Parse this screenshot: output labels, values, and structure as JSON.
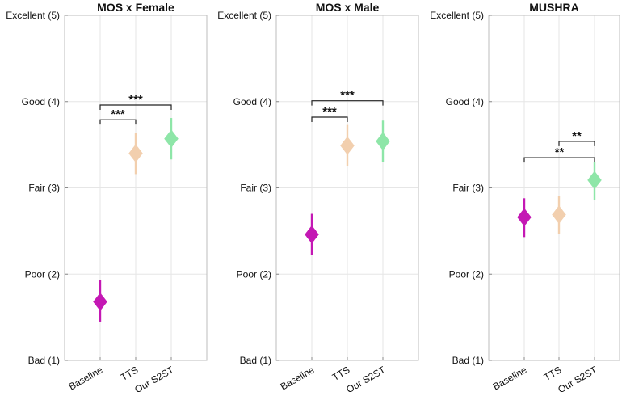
{
  "chart_data": [
    {
      "type": "scatter",
      "title": "MOS x Female",
      "categories": [
        "Baseline",
        "TTS",
        "Our S2ST"
      ],
      "y_ticks": [
        {
          "value": 1,
          "label": "Bad (1)"
        },
        {
          "value": 2,
          "label": "Poor (2)"
        },
        {
          "value": 3,
          "label": "Fair (3)"
        },
        {
          "value": 4,
          "label": "Good (4)"
        },
        {
          "value": 5,
          "label": "Excellent (5)"
        }
      ],
      "ylim": [
        1,
        5
      ],
      "grid": true,
      "points": [
        {
          "category": "Baseline",
          "mean": 1.68,
          "low": 1.45,
          "high": 1.93
        },
        {
          "category": "TTS",
          "mean": 3.4,
          "low": 3.16,
          "high": 3.64
        },
        {
          "category": "Our S2ST",
          "mean": 3.57,
          "low": 3.33,
          "high": 3.81
        }
      ],
      "significance": [
        {
          "from": "Baseline",
          "to": "TTS",
          "label": "***",
          "level": 3.79
        },
        {
          "from": "Baseline",
          "to": "Our S2ST",
          "label": "***",
          "level": 3.96
        }
      ]
    },
    {
      "type": "scatter",
      "title": "MOS x Male",
      "categories": [
        "Baseline",
        "TTS",
        "Our S2ST"
      ],
      "y_ticks": [
        {
          "value": 1,
          "label": "Bad (1)"
        },
        {
          "value": 2,
          "label": "Poor (2)"
        },
        {
          "value": 3,
          "label": "Fair (3)"
        },
        {
          "value": 4,
          "label": "Good (4)"
        },
        {
          "value": 5,
          "label": "Excellent (5)"
        }
      ],
      "ylim": [
        1,
        5
      ],
      "grid": true,
      "points": [
        {
          "category": "Baseline",
          "mean": 2.46,
          "low": 2.22,
          "high": 2.7
        },
        {
          "category": "TTS",
          "mean": 3.49,
          "low": 3.25,
          "high": 3.73
        },
        {
          "category": "Our S2ST",
          "mean": 3.54,
          "low": 3.3,
          "high": 3.78
        }
      ],
      "significance": [
        {
          "from": "Baseline",
          "to": "TTS",
          "label": "***",
          "level": 3.82
        },
        {
          "from": "Baseline",
          "to": "Our S2ST",
          "label": "***",
          "level": 4.01
        }
      ]
    },
    {
      "type": "scatter",
      "title": "MUSHRA",
      "categories": [
        "Baseline",
        "TTS",
        "Our S2ST"
      ],
      "y_ticks": [
        {
          "value": 1,
          "label": "Bad (1)"
        },
        {
          "value": 2,
          "label": "Poor (2)"
        },
        {
          "value": 3,
          "label": "Fair (3)"
        },
        {
          "value": 4,
          "label": "Good (4)"
        },
        {
          "value": 5,
          "label": "Excellent (5)"
        }
      ],
      "ylim": [
        1,
        5
      ],
      "grid": true,
      "points": [
        {
          "category": "Baseline",
          "mean": 2.66,
          "low": 2.43,
          "high": 2.88
        },
        {
          "category": "TTS",
          "mean": 2.69,
          "low": 2.47,
          "high": 2.91
        },
        {
          "category": "Our S2ST",
          "mean": 3.09,
          "low": 2.86,
          "high": 3.3
        }
      ],
      "significance": [
        {
          "from": "Baseline",
          "to": "Our S2ST",
          "label": "**",
          "level": 3.35
        },
        {
          "from": "TTS",
          "to": "Our S2ST",
          "label": "**",
          "level": 3.54
        }
      ]
    }
  ],
  "colors": {
    "Baseline": "#c418b4",
    "TTS": "#f2cfae",
    "Our S2ST": "#8ee6a8",
    "grid": "#e6e6e6",
    "axis": "#bdbdbd",
    "text": "#111111",
    "bracket": "#222222"
  }
}
